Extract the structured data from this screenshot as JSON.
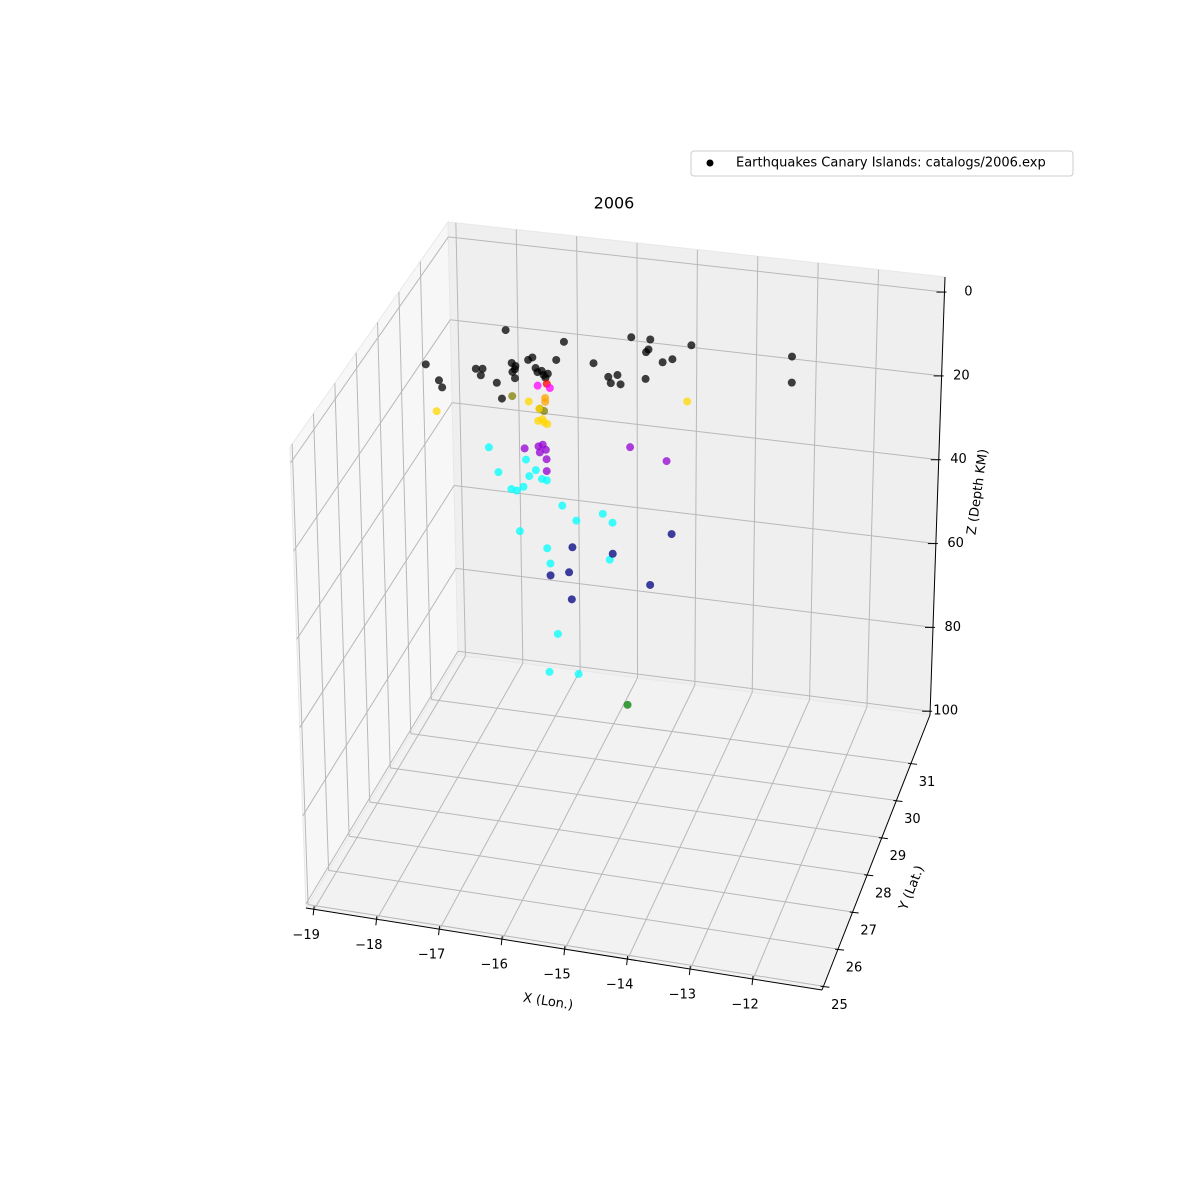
{
  "chart_data": {
    "type": "scatter3d",
    "title": "2006",
    "x_label": "X (Lon.)",
    "y_label": "Y (Lat.)",
    "z_label": "Z (Depth KM)",
    "xlim": [
      -19.13,
      -10.9
    ],
    "ylim": [
      24.9,
      32.3
    ],
    "zlim": [
      -3.6,
      100.9
    ],
    "z_inverted": true,
    "xticks": [
      {
        "value": -19,
        "label": "−19"
      },
      {
        "value": -18,
        "label": "−18"
      },
      {
        "value": -17,
        "label": "−17"
      },
      {
        "value": -16,
        "label": "−16"
      },
      {
        "value": -15,
        "label": "−15"
      },
      {
        "value": -14,
        "label": "−14"
      },
      {
        "value": -13,
        "label": "−13"
      },
      {
        "value": -12,
        "label": "−12"
      }
    ],
    "yticks": [
      25,
      26,
      27,
      28,
      29,
      30,
      31
    ],
    "zticks": [
      0,
      20,
      40,
      60,
      80,
      100
    ],
    "grid": true,
    "legend": "upper right",
    "series": [
      {
        "name": "Earthquakes Canary Islands: catalogs/2006.exp",
        "color": "#000000",
        "x": [
          -17.4,
          -16.45,
          -15.35,
          -15.04,
          -14.37,
          -12.73,
          -12.73,
          -18.72,
          -18.51,
          -18.46,
          -17.9,
          -17.79,
          -17.82,
          -17.56,
          -17.48,
          -17.31,
          -17.25,
          -17.3,
          -17.26,
          -17.04,
          -16.97,
          -16.92,
          -16.82,
          -16.79,
          -16.72,
          -16.76,
          -16.89,
          -16.58,
          -17.26,
          -15.97,
          -15.73,
          -15.69,
          -15.58,
          -15.53,
          -15.11,
          -15.07,
          -15.12,
          -14.84,
          -14.68,
          -17.31,
          -16.86,
          -16.79,
          -16.74,
          -16.89,
          -16.69,
          -16.77,
          -16.77,
          -18.56,
          -17.04,
          -16.87,
          -16.82,
          -16.79,
          -16.89,
          -16.74,
          -14.44,
          -17.12,
          -16.89,
          -16.82,
          -16.77,
          -16.87,
          -16.76,
          -16.76,
          -15.38,
          -14.78,
          -17.71,
          -17.56,
          -17.1,
          -16.94,
          -17.05,
          -16.84,
          -16.76,
          -17.35,
          -17.26,
          -17.15,
          -16.51,
          -16.28,
          -15.84,
          -15.68,
          -17.22,
          -16.77,
          -16.72,
          -15.73,
          -16.61,
          -16.76,
          -16.27,
          -16.35,
          -15.68,
          -14.7,
          -16.72,
          -16.41,
          -16.37,
          -15.06,
          -15.45
        ],
        "y": [
          30,
          30,
          30,
          30,
          30,
          30,
          30,
          30,
          30,
          30,
          30,
          30,
          30,
          30,
          30,
          30,
          30,
          30,
          30,
          30,
          30,
          30,
          30,
          30,
          30,
          30,
          30,
          30,
          30,
          30,
          30,
          30,
          30,
          30,
          30,
          30,
          30,
          30,
          30,
          30,
          30,
          30,
          30,
          30,
          30,
          30,
          30,
          30,
          30,
          30,
          30,
          30,
          30,
          30,
          30,
          30,
          30,
          30,
          30,
          30,
          30,
          30,
          30,
          30,
          30,
          30,
          30,
          30,
          30,
          30,
          30,
          30,
          30,
          30,
          30,
          30,
          30,
          30,
          30,
          30,
          30,
          30,
          30,
          30,
          30,
          30,
          30,
          30,
          30,
          30,
          30,
          30,
          30
        ],
        "z": [
          2.4,
          3.5,
          0.5,
          0.5,
          0.7,
          0.5,
          6.6,
          12.8,
          16.2,
          17.8,
          12.4,
          12.2,
          13.8,
          15.1,
          18.7,
          10.0,
          10.6,
          12.1,
          13.5,
          8.8,
          8.1,
          10.5,
          11.0,
          11.9,
          11.5,
          12.5,
          11.4,
          8.0,
          11.4,
          7.7,
          10.5,
          11.9,
          9.8,
          11.9,
          3.6,
          2.9,
          9.9,
          5.5,
          4.5,
          17.8,
          20.0,
          20.4,
          13.9,
          14.6,
          14.8,
          17.3,
          18.2,
          23.6,
          18.6,
          20.0,
          22.4,
          23.1,
          22.9,
          23.4,
          14.0,
          29.8,
          28.9,
          28.4,
          29.5,
          30.3,
          31.7,
          34.5,
          26.4,
          28.6,
          30.6,
          36.2,
          32.4,
          34.6,
          36.2,
          36.5,
          36.7,
          39.8,
          40.0,
          38.9,
          42.2,
          45.3,
          42.9,
          44.7,
          49.5,
          52.7,
          56.2,
          53.5,
          72.6,
          81.8,
          81.4,
          51.7,
          52.0,
          45.6,
          59.0,
          57.7,
          64.0,
          58.2,
          87.1
        ],
        "colors": [
          "#000000",
          "#000000",
          "#000000",
          "#000000",
          "#000000",
          "#000000",
          "#000000",
          "#000000",
          "#000000",
          "#000000",
          "#000000",
          "#000000",
          "#000000",
          "#000000",
          "#000000",
          "#000000",
          "#000000",
          "#000000",
          "#000000",
          "#000000",
          "#000000",
          "#000000",
          "#000000",
          "#000000",
          "#000000",
          "#000000",
          "#000000",
          "#000000",
          "#000000",
          "#000000",
          "#000000",
          "#000000",
          "#000000",
          "#000000",
          "#000000",
          "#000000",
          "#000000",
          "#000000",
          "#000000",
          "#808000",
          "#808000",
          "#808000",
          "#ff0000",
          "#ff00ff",
          "#ff00ff",
          "#ffa500",
          "#ffa500",
          "#ffd700",
          "#ffd700",
          "#ffd700",
          "#ffd700",
          "#ffd700",
          "#ffd700",
          "#ffd700",
          "#ffd700",
          "#9400d3",
          "#9400d3",
          "#9400d3",
          "#9400d3",
          "#9400d3",
          "#9400d3",
          "#9400d3",
          "#9400d3",
          "#9400d3",
          "#00ffff",
          "#00ffff",
          "#00ffff",
          "#00ffff",
          "#00ffff",
          "#00ffff",
          "#00ffff",
          "#00ffff",
          "#00ffff",
          "#00ffff",
          "#00ffff",
          "#00ffff",
          "#00ffff",
          "#00ffff",
          "#00ffff",
          "#00ffff",
          "#00ffff",
          "#00ffff",
          "#00ffff",
          "#00ffff",
          "#00ffff",
          "#000080",
          "#000080",
          "#000080",
          "#000080",
          "#000080",
          "#000080",
          "#000080",
          "#008000"
        ]
      }
    ]
  }
}
